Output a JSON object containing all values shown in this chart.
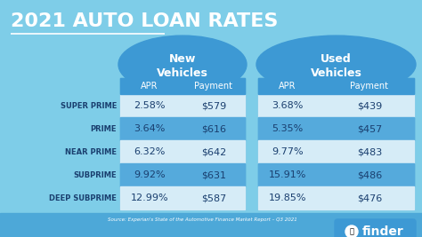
{
  "title": "2021 AUTO LOAN RATES",
  "bg_color": "#7ecde8",
  "table_bg_dark": "#3d99d4",
  "table_bg_light": "#55aadc",
  "table_bg_white": "#d6ecf7",
  "text_white": "#ffffff",
  "text_dark": "#1a3f6f",
  "categories": [
    "SUPER PRIME",
    "PRIME",
    "NEAR PRIME",
    "SUBPRIME",
    "DEEP SUBPRIME"
  ],
  "new_header": "New\nVehicles",
  "used_header": "Used\nVehicles",
  "new_apr": [
    "2.58%",
    "3.64%",
    "6.32%",
    "9.92%",
    "12.99%"
  ],
  "new_payment": [
    "$579",
    "$616",
    "$642",
    "$631",
    "$587"
  ],
  "used_apr": [
    "3.68%",
    "5.35%",
    "9.77%",
    "15.91%",
    "19.85%"
  ],
  "used_payment": [
    "$439",
    "$457",
    "$483",
    "$486",
    "$476"
  ],
  "source_text": "Source: Experian's State of the Automotive Finance Market Report – Q3 2021",
  "finder_text": "finder",
  "bottom_bar_color": "#4da8d8"
}
